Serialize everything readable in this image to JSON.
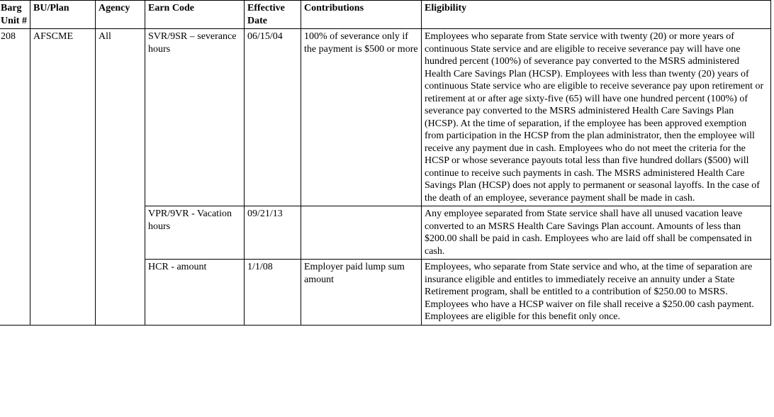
{
  "columns": {
    "barg": "Barg Unit #",
    "bu": "BU/Plan",
    "agency": "Agency",
    "earn": "Earn Code",
    "date": "Effective Date",
    "contrib": "Contributions",
    "elig": "Eligibility"
  },
  "row": {
    "barg": "208",
    "bu": "AFSCME",
    "agency": "All",
    "sub": [
      {
        "earn": "SVR/9SR – severance hours",
        "date": "06/15/04",
        "contrib": "100% of severance only if the payment is $500 or more",
        "elig": "Employees who separate from State service with twenty (20) or more years of continuous State service and are eligible to receive severance pay will have one hundred percent (100%) of severance pay converted to the MSRS administered Health Care Savings Plan (HCSP). Employees with less than twenty (20) years of continuous State service who are eligible to receive severance pay upon retirement or retirement at or after age sixty-five (65) will have one hundred percent (100%) of severance pay converted to the MSRS administered Health Care Savings Plan (HCSP). At the time of separation, if the employee has been approved exemption from participation in the HCSP from the plan administrator, then the employee will receive any payment due in cash. Employees who do not meet the criteria for the HCSP or whose severance payouts total less than five hundred dollars ($500) will continue to receive such payments in cash. The MSRS administered Health Care Savings Plan (HCSP) does not apply to permanent or seasonal layoffs. In the case of the death of an employee, severance payment shall be made in cash."
      },
      {
        "earn": "VPR/9VR - Vacation hours",
        "date": "09/21/13",
        "contrib": "",
        "elig": "Any employee separated from State service shall have all unused vacation leave converted to an MSRS Health Care Savings Plan account. Amounts of less than $200.00 shall be paid in cash. Employees who are laid off shall be compensated in cash."
      },
      {
        "earn": "HCR - amount",
        "date": "1/1/08",
        "contrib": "Employer paid lump sum amount",
        "elig": "Employees, who separate from State service and who, at the time of separation are insurance eligible and entitles to immediately receive an annuity under a State Retirement program, shall be entitled to a contribution of $250.00 to MSRS. Employees who have a HCSP waiver on file shall receive a $250.00 cash payment. Employees are eligible for this benefit only once."
      }
    ]
  }
}
